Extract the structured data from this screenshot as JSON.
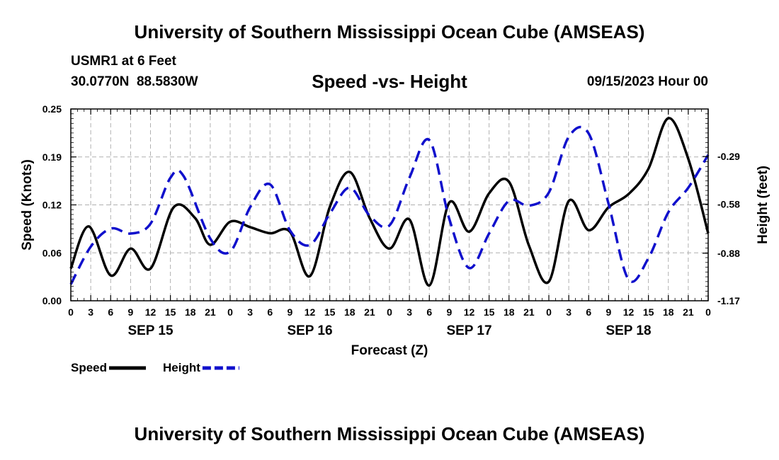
{
  "header": {
    "title": "University of Southern Mississippi Ocean Cube (AMSEAS)",
    "station": "USMR1 at 6 Feet",
    "coords": "30.0770N  88.5830W",
    "datetime": "09/15/2023 Hour 00",
    "footer_title": "University of Southern Mississippi Ocean Cube (AMSEAS)"
  },
  "chart_data": {
    "type": "line",
    "title": "Speed -vs- Height",
    "xlabel": "Forecast (Z)",
    "ylabel": "Speed (Knots)",
    "ylabel_right": "Height (feet)",
    "x_hours_range": [
      0,
      96
    ],
    "x_tick_labels": [
      "0",
      "3",
      "6",
      "9",
      "12",
      "15",
      "18",
      "21",
      "0",
      "3",
      "6",
      "9",
      "12",
      "15",
      "18",
      "21",
      "0",
      "3",
      "6",
      "9",
      "12",
      "15",
      "18",
      "21",
      "0",
      "3",
      "6",
      "9",
      "12",
      "15",
      "18",
      "21",
      "0"
    ],
    "day_labels": [
      "SEP 15",
      "SEP 16",
      "SEP 17",
      "SEP 18"
    ],
    "ylim": [
      0,
      0.25
    ],
    "y_ticks": [
      "0.00",
      "0.06",
      "0.12",
      "0.19",
      "0.25"
    ],
    "y_tick_values": [
      0,
      0.0625,
      0.125,
      0.1875,
      0.25
    ],
    "ylim_right": [
      -1.17,
      0.0
    ],
    "y_ticks_right": [
      "-1.17",
      "-0.88",
      "-0.58",
      "-0.29"
    ],
    "y_tick_values_right": [
      -1.17,
      -0.88,
      -0.58,
      -0.29
    ],
    "grid": true,
    "legend": [
      {
        "name": "Speed",
        "color": "#000000",
        "style": "solid"
      },
      {
        "name": "Height",
        "color": "#1010cc",
        "style": "dashed"
      }
    ],
    "series": [
      {
        "name": "Speed",
        "axis": "left",
        "color": "#000000",
        "style": "solid",
        "x": [
          0,
          2.7,
          6,
          9,
          12,
          15.5,
          18.7,
          21,
          24,
          27,
          30,
          33,
          36,
          39,
          42,
          45,
          48,
          51,
          54,
          57,
          60,
          63,
          66,
          69,
          72,
          75,
          78,
          81,
          84,
          87,
          90,
          93,
          96
        ],
        "values": [
          0.042,
          0.097,
          0.033,
          0.068,
          0.042,
          0.122,
          0.108,
          0.073,
          0.103,
          0.096,
          0.088,
          0.09,
          0.032,
          0.122,
          0.168,
          0.108,
          0.068,
          0.106,
          0.02,
          0.128,
          0.09,
          0.14,
          0.155,
          0.072,
          0.025,
          0.13,
          0.092,
          0.122,
          0.139,
          0.172,
          0.238,
          0.185,
          0.088
        ]
      },
      {
        "name": "Height",
        "axis": "right",
        "color": "#1010cc",
        "style": "dashed",
        "x": [
          0,
          3,
          6,
          9,
          12,
          15,
          17,
          21,
          24,
          27,
          30,
          33,
          36,
          39,
          42,
          45,
          48,
          51,
          54,
          57,
          60,
          63,
          66,
          69,
          72,
          75,
          78,
          81,
          84,
          87,
          90,
          93,
          96
        ],
        "values": [
          -1.07,
          -0.84,
          -0.73,
          -0.76,
          -0.7,
          -0.42,
          -0.41,
          -0.79,
          -0.87,
          -0.6,
          -0.46,
          -0.74,
          -0.83,
          -0.64,
          -0.48,
          -0.65,
          -0.71,
          -0.42,
          -0.19,
          -0.67,
          -0.97,
          -0.76,
          -0.56,
          -0.59,
          -0.51,
          -0.17,
          -0.15,
          -0.58,
          -1.04,
          -0.91,
          -0.63,
          -0.48,
          -0.28
        ]
      }
    ]
  }
}
